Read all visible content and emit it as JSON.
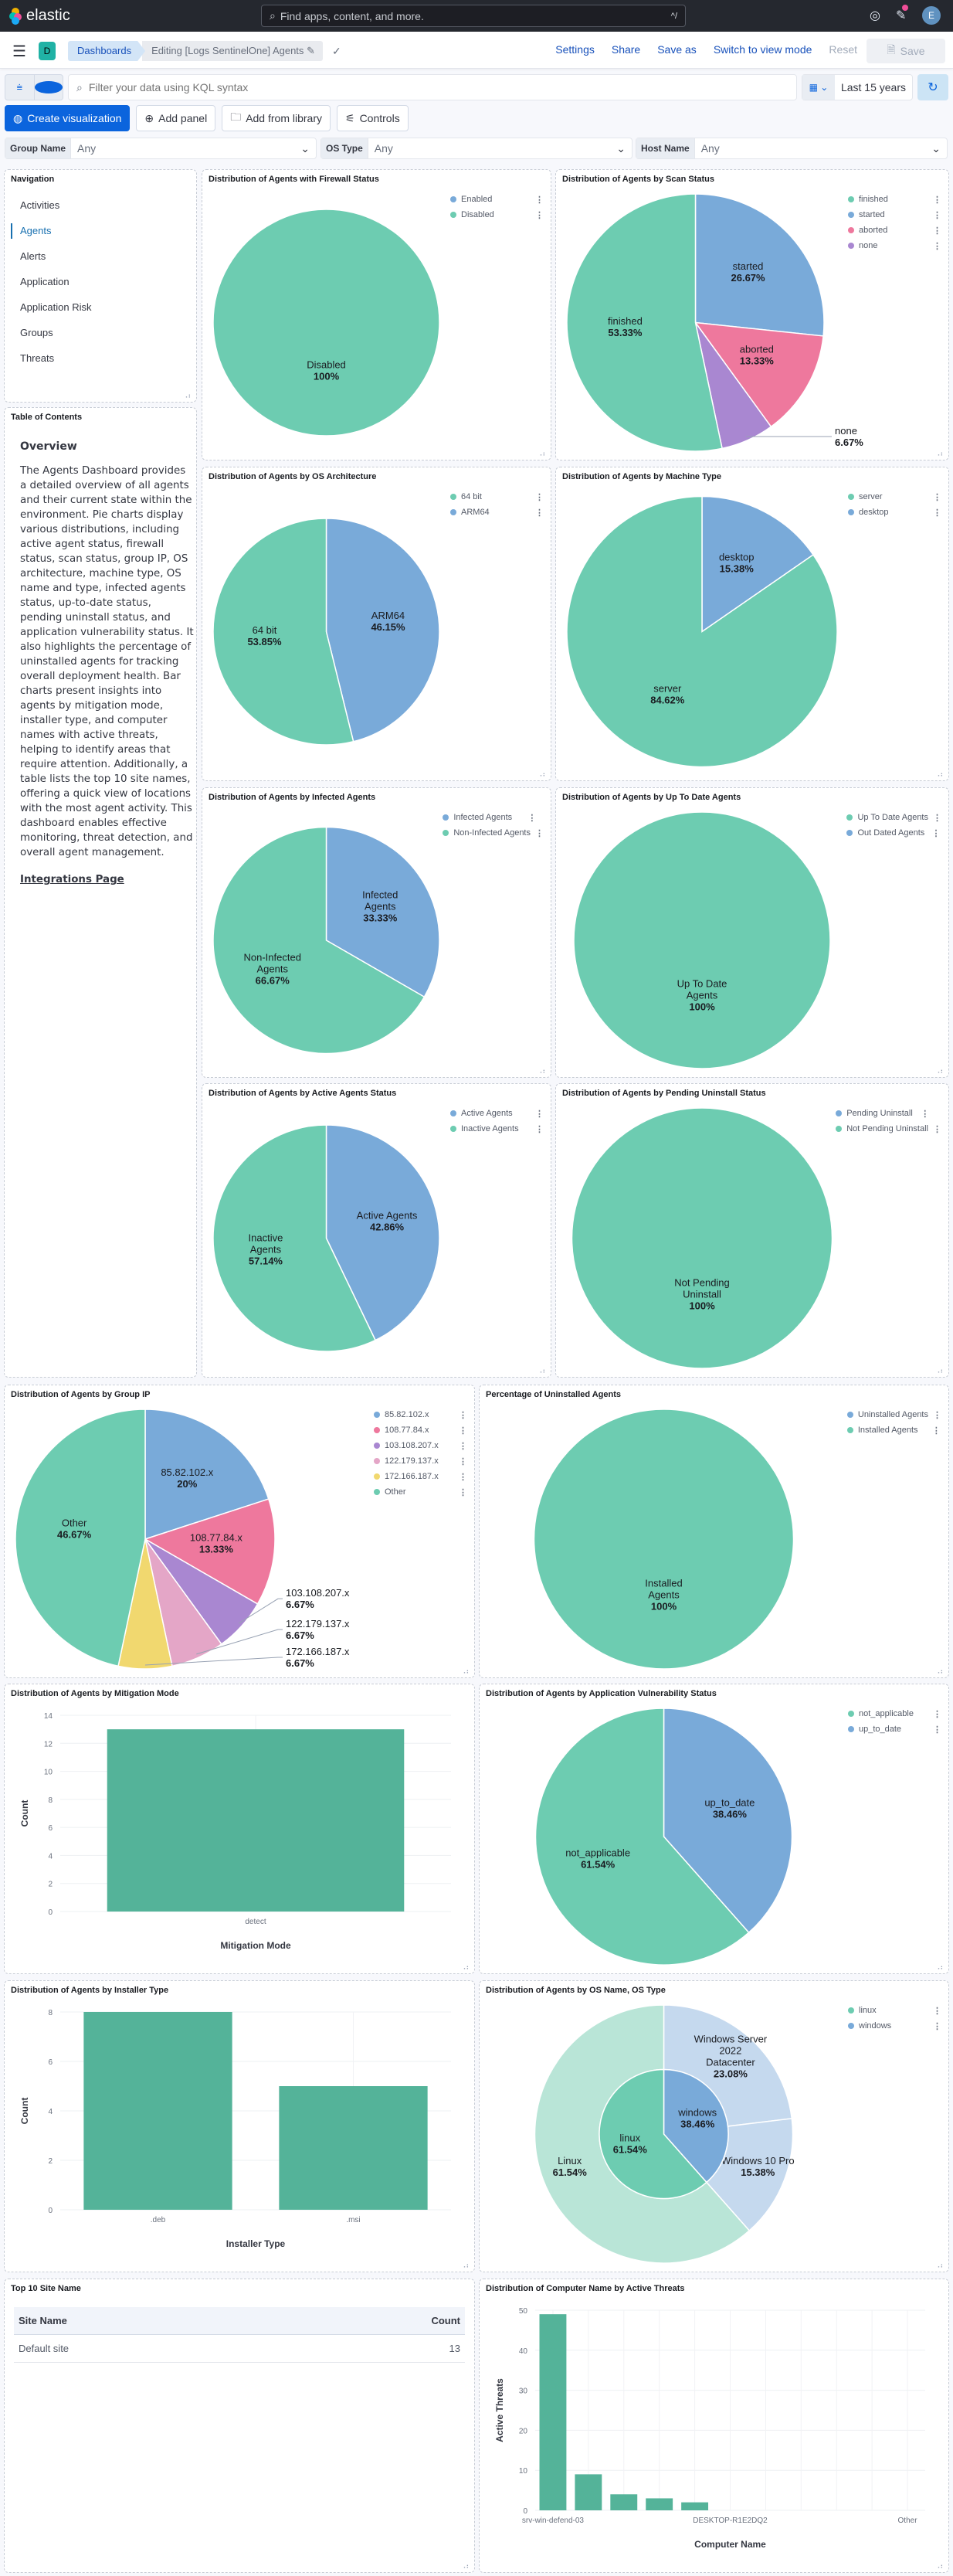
{
  "header": {
    "brand": "elastic",
    "search_placeholder": "Find apps, content, and more.",
    "search_shortcut": "^/",
    "user_initial": "E"
  },
  "breadcrumbs": {
    "app_badge": "D",
    "dashboards": "Dashboards",
    "current": "Editing [Logs SentinelOne] Agents",
    "edit_icon": "✎"
  },
  "actions": {
    "settings": "Settings",
    "share": "Share",
    "save_as": "Save as",
    "switch_view": "Switch to view mode",
    "reset": "Reset",
    "save": "Save"
  },
  "query": {
    "placeholder": "Filter your data using KQL syntax",
    "value": "",
    "time_range": "Last 15 years"
  },
  "toolbar": {
    "create_visualization": "Create visualization",
    "add_panel": "Add panel",
    "add_from_library": "Add from library",
    "controls": "Controls"
  },
  "controls": [
    {
      "label": "Group Name",
      "value": "Any"
    },
    {
      "label": "OS Type",
      "value": "Any"
    },
    {
      "label": "Host Name",
      "value": "Any"
    }
  ],
  "colors": {
    "green": "#6dccb1",
    "blue": "#79aad9",
    "pink": "#ee789d",
    "purple": "#a987d1",
    "lightpink": "#e4a6c7",
    "yellow": "#f1d86f",
    "bar": "#54b399",
    "light_green": "#b9e5d7",
    "light_blue": "#c5d9ee",
    "accent": "#0b64dd"
  },
  "navigation": {
    "title": "Navigation",
    "items": [
      "Activities",
      "Agents",
      "Alerts",
      "Application",
      "Application Risk",
      "Groups",
      "Threats"
    ],
    "active": "Agents"
  },
  "toc": {
    "title": "Table of Contents",
    "heading": "Overview",
    "body": "The Agents Dashboard provides a detailed overview of all agents and their current state within the environment. Pie charts display various distributions, including active agent status, firewall status, scan status, group IP, OS architecture, machine type, OS name and type, infected agents status, up-to-date status, pending uninstall status, and application vulnerability status. It also highlights the percentage of uninstalled agents for tracking overall deployment health. Bar charts present insights into agents by mitigation mode, installer type, and computer names with active threats, helping to identify areas that require attention. Additionally, a table lists the top 10 site names, offering a quick view of locations with the most agent activity. This dashboard enables effective monitoring, threat detection, and overall agent management.",
    "link": "Integrations Page"
  },
  "site_table": {
    "title": "Top 10 Site Name",
    "columns": [
      "Site Name",
      "Count"
    ],
    "rows": [
      [
        "Default site",
        "13"
      ]
    ]
  },
  "chart_data": [
    {
      "id": "firewall",
      "type": "pie",
      "title": "Distribution of Agents with Firewall Status",
      "legend": [
        {
          "name": "Enabled",
          "color": "#79aad9"
        },
        {
          "name": "Disabled",
          "color": "#6dccb1"
        }
      ],
      "slices": [
        {
          "name": "Disabled",
          "value": 100,
          "label": "100%",
          "color": "#6dccb1"
        }
      ]
    },
    {
      "id": "scan",
      "type": "pie",
      "title": "Distribution of Agents by Scan Status",
      "legend": [
        {
          "name": "finished",
          "color": "#6dccb1"
        },
        {
          "name": "started",
          "color": "#79aad9"
        },
        {
          "name": "aborted",
          "color": "#ee789d"
        },
        {
          "name": "none",
          "color": "#a987d1"
        }
      ],
      "slices": [
        {
          "name": "started",
          "value": 26.67,
          "label": "26.67%",
          "color": "#79aad9"
        },
        {
          "name": "aborted",
          "value": 13.33,
          "label": "13.33%",
          "color": "#ee789d"
        },
        {
          "name": "none",
          "value": 6.67,
          "label": "6.67%",
          "color": "#a987d1"
        },
        {
          "name": "finished",
          "value": 53.33,
          "label": "53.33%",
          "color": "#6dccb1"
        }
      ]
    },
    {
      "id": "arch",
      "type": "pie",
      "title": "Distribution of Agents by OS Architecture",
      "legend": [
        {
          "name": "64 bit",
          "color": "#6dccb1"
        },
        {
          "name": "ARM64",
          "color": "#79aad9"
        }
      ],
      "slices": [
        {
          "name": "ARM64",
          "value": 46.15,
          "label": "46.15%",
          "color": "#79aad9"
        },
        {
          "name": "64 bit",
          "value": 53.85,
          "label": "53.85%",
          "color": "#6dccb1"
        }
      ]
    },
    {
      "id": "machine",
      "type": "pie",
      "title": "Distribution of Agents by Machine Type",
      "legend": [
        {
          "name": "server",
          "color": "#6dccb1"
        },
        {
          "name": "desktop",
          "color": "#79aad9"
        }
      ],
      "slices": [
        {
          "name": "desktop",
          "value": 15.38,
          "label": "15.38%",
          "color": "#79aad9"
        },
        {
          "name": "server",
          "value": 84.62,
          "label": "84.62%",
          "color": "#6dccb1"
        }
      ]
    },
    {
      "id": "infected",
      "type": "pie",
      "title": "Distribution of Agents by Infected Agents",
      "legend": [
        {
          "name": "Infected Agents",
          "color": "#79aad9"
        },
        {
          "name": "Non-Infected Agents",
          "color": "#6dccb1"
        }
      ],
      "slices": [
        {
          "name": "Infected Agents",
          "value": 33.33,
          "label": "33.33%",
          "color": "#79aad9"
        },
        {
          "name": "Non-Infected Agents",
          "value": 66.67,
          "label": "66.67%",
          "color": "#6dccb1"
        }
      ]
    },
    {
      "id": "uptodate",
      "type": "pie",
      "title": "Distribution of Agents by Up To Date Agents",
      "legend": [
        {
          "name": "Up To Date Agents",
          "color": "#6dccb1"
        },
        {
          "name": "Out Dated Agents",
          "color": "#79aad9"
        }
      ],
      "slices": [
        {
          "name": "Up To Date Agents",
          "value": 100,
          "label": "100%",
          "color": "#6dccb1"
        }
      ]
    },
    {
      "id": "active",
      "type": "pie",
      "title": "Distribution of Agents by Active Agents Status",
      "legend": [
        {
          "name": "Active Agents",
          "color": "#79aad9"
        },
        {
          "name": "Inactive Agents",
          "color": "#6dccb1"
        }
      ],
      "slices": [
        {
          "name": "Active Agents",
          "value": 42.86,
          "label": "42.86%",
          "color": "#79aad9"
        },
        {
          "name": "Inactive Agents",
          "value": 57.14,
          "label": "57.14%",
          "color": "#6dccb1"
        }
      ]
    },
    {
      "id": "pending",
      "type": "pie",
      "title": "Distribution of Agents by Pending Uninstall Status",
      "legend": [
        {
          "name": "Pending Uninstall",
          "color": "#79aad9"
        },
        {
          "name": "Not Pending Uninstall",
          "color": "#6dccb1"
        }
      ],
      "slices": [
        {
          "name": "Not Pending Uninstall",
          "value": 100,
          "label": "100%",
          "color": "#6dccb1"
        }
      ]
    },
    {
      "id": "groupip",
      "type": "pie",
      "title": "Distribution of Agents by Group IP",
      "legend": [
        {
          "name": "85.82.102.x",
          "color": "#79aad9"
        },
        {
          "name": "108.77.84.x",
          "color": "#ee789d"
        },
        {
          "name": "103.108.207.x",
          "color": "#a987d1"
        },
        {
          "name": "122.179.137.x",
          "color": "#e4a6c7"
        },
        {
          "name": "172.166.187.x",
          "color": "#f1d86f"
        },
        {
          "name": "Other",
          "color": "#6dccb1"
        }
      ],
      "slices": [
        {
          "name": "85.82.102.x",
          "value": 20,
          "label": "20%",
          "color": "#79aad9"
        },
        {
          "name": "108.77.84.x",
          "value": 13.33,
          "label": "13.33%",
          "color": "#ee789d"
        },
        {
          "name": "103.108.207.x",
          "value": 6.67,
          "label": "6.67%",
          "color": "#a987d1"
        },
        {
          "name": "122.179.137.x",
          "value": 6.67,
          "label": "6.67%",
          "color": "#e4a6c7"
        },
        {
          "name": "172.166.187.x",
          "value": 6.67,
          "label": "6.67%",
          "color": "#f1d86f"
        },
        {
          "name": "Other",
          "value": 46.67,
          "label": "46.67%",
          "color": "#6dccb1"
        }
      ]
    },
    {
      "id": "uninstalled",
      "type": "pie",
      "title": "Percentage of Uninstalled Agents",
      "legend": [
        {
          "name": "Uninstalled Agents",
          "color": "#79aad9"
        },
        {
          "name": "Installed Agents",
          "color": "#6dccb1"
        }
      ],
      "slices": [
        {
          "name": "Installed Agents",
          "value": 100,
          "label": "100%",
          "color": "#6dccb1"
        }
      ]
    },
    {
      "id": "mitigation",
      "type": "bar",
      "title": "Distribution of Agents by Mitigation Mode",
      "categories": [
        "detect"
      ],
      "values": [
        13
      ],
      "xlabel": "Mitigation Mode",
      "ylabel": "Count",
      "ylim": [
        0,
        14
      ],
      "yticks": [
        0,
        2,
        4,
        6,
        8,
        10,
        12,
        14
      ]
    },
    {
      "id": "appvuln",
      "type": "pie",
      "title": "Distribution of Agents by Application Vulnerability Status",
      "legend": [
        {
          "name": "not_applicable",
          "color": "#6dccb1"
        },
        {
          "name": "up_to_date",
          "color": "#79aad9"
        }
      ],
      "slices": [
        {
          "name": "up_to_date",
          "value": 38.46,
          "label": "38.46%",
          "color": "#79aad9"
        },
        {
          "name": "not_applicable",
          "value": 61.54,
          "label": "61.54%",
          "color": "#6dccb1"
        }
      ]
    },
    {
      "id": "installer",
      "type": "bar",
      "title": "Distribution of Agents by Installer Type",
      "categories": [
        ".deb",
        ".msi"
      ],
      "values": [
        8,
        5
      ],
      "xlabel": "Installer Type",
      "ylabel": "Count",
      "ylim": [
        0,
        8
      ],
      "yticks": [
        0,
        2,
        4,
        6,
        8
      ]
    },
    {
      "id": "osname",
      "type": "donut",
      "title": "Distribution of Agents by OS Name, OS Type",
      "legend": [
        {
          "name": "linux",
          "color": "#6dccb1"
        },
        {
          "name": "windows",
          "color": "#79aad9"
        }
      ],
      "inner": [
        {
          "name": "windows",
          "value": 38.46,
          "label": "38.46%",
          "color": "#79aad9"
        },
        {
          "name": "linux",
          "value": 61.54,
          "label": "61.54%",
          "color": "#6dccb1"
        }
      ],
      "outer": [
        {
          "name": "Windows Server 2022 Datacenter",
          "value": 23.08,
          "label": "23.08%",
          "color": "#c5d9ee"
        },
        {
          "name": "Windows 10 Pro",
          "value": 15.38,
          "label": "15.38%",
          "color": "#c5d9ee"
        },
        {
          "name": "Linux",
          "value": 61.54,
          "label": "61.54%",
          "color": "#b9e5d7"
        }
      ]
    },
    {
      "id": "threats",
      "type": "bar",
      "title": "Distribution of Computer Name by Active Threats",
      "categories": [
        "srv-win-defend-03",
        "",
        "",
        "",
        "",
        "DESKTOP-R1E2DQ2",
        "",
        "",
        "",
        "",
        "Other"
      ],
      "values": [
        49,
        9,
        4,
        3,
        2,
        0,
        0,
        0,
        0,
        0,
        0
      ],
      "xlabel": "Computer Name",
      "ylabel": "Active Threats",
      "ylim": [
        0,
        50
      ],
      "yticks": [
        0,
        10,
        20,
        30,
        40,
        50
      ]
    }
  ]
}
